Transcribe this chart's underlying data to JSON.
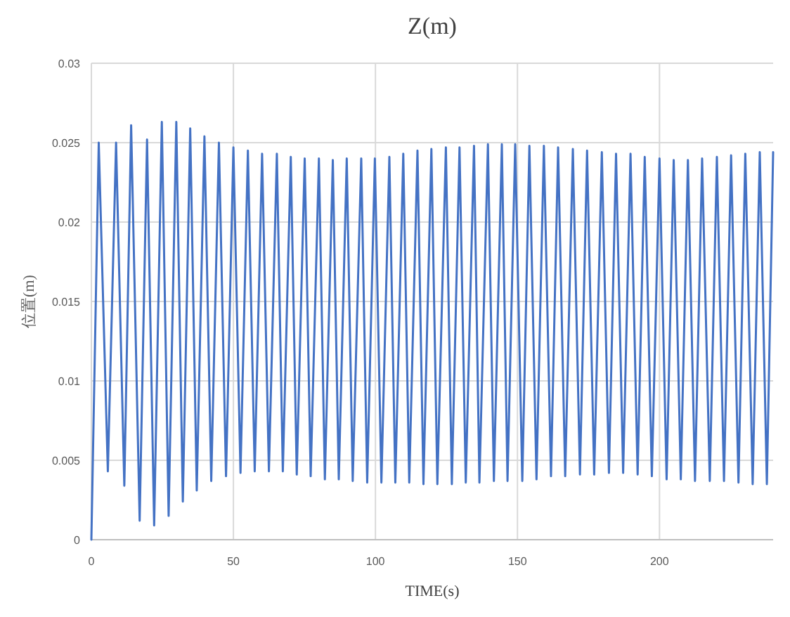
{
  "chart_data": {
    "type": "line",
    "title": "Z(m)",
    "xlabel": "TIME(s)",
    "ylabel": "位置(m)",
    "xlim": [
      0,
      240
    ],
    "ylim": [
      0,
      0.03
    ],
    "xticks": [
      0,
      50,
      100,
      150,
      200
    ],
    "yticks": [
      0,
      0.005,
      0.01,
      0.015,
      0.02,
      0.025,
      0.03
    ],
    "grid": true,
    "x": [
      0,
      2.6,
      5.8,
      8.7,
      11.6,
      14.0,
      17.0,
      19.6,
      22.1,
      24.8,
      27.2,
      29.9,
      32.2,
      34.8,
      37.1,
      39.8,
      42.2,
      44.9,
      47.4,
      50.0,
      52.5,
      55.1,
      57.5,
      60.1,
      62.5,
      65.3,
      67.4,
      70.2,
      72.3,
      75.1,
      77.2,
      80.1,
      82.2,
      85.0,
      87.1,
      89.9,
      92.0,
      95.0,
      97.1,
      99.8,
      102.1,
      104.9,
      107.0,
      109.8,
      111.9,
      114.8,
      116.9,
      119.7,
      121.8,
      124.8,
      126.9,
      129.6,
      131.8,
      134.7,
      136.6,
      139.6,
      141.7,
      144.5,
      146.5,
      149.2,
      151.7,
      154.2,
      156.7,
      159.3,
      161.8,
      164.3,
      166.8,
      169.5,
      172.0,
      174.5,
      177.0,
      179.7,
      182.2,
      184.7,
      187.2,
      189.8,
      192.3,
      194.8,
      197.3,
      200.0,
      202.5,
      205.0,
      207.5,
      210.0,
      212.5,
      215.0,
      217.7,
      220.2,
      222.7,
      225.2,
      227.8,
      230.2,
      232.8,
      235.3,
      237.8,
      240
    ],
    "series": [
      {
        "color": "#4472c4",
        "values": [
          0,
          0.025,
          0.0043,
          0.025,
          0.0034,
          0.0261,
          0.0012,
          0.0252,
          0.0009,
          0.0263,
          0.0015,
          0.0263,
          0.0024,
          0.0259,
          0.0031,
          0.0254,
          0.0037,
          0.025,
          0.004,
          0.0247,
          0.0042,
          0.0245,
          0.0043,
          0.0243,
          0.0043,
          0.0243,
          0.0043,
          0.0241,
          0.0041,
          0.024,
          0.004,
          0.024,
          0.0038,
          0.0239,
          0.0038,
          0.024,
          0.0037,
          0.024,
          0.0036,
          0.024,
          0.0036,
          0.0241,
          0.0036,
          0.0243,
          0.0036,
          0.0245,
          0.0035,
          0.0246,
          0.0035,
          0.0247,
          0.0035,
          0.0247,
          0.0036,
          0.0248,
          0.0036,
          0.0249,
          0.0037,
          0.0249,
          0.0037,
          0.0249,
          0.0037,
          0.0248,
          0.0038,
          0.0248,
          0.004,
          0.0247,
          0.004,
          0.0246,
          0.0041,
          0.0245,
          0.0041,
          0.0244,
          0.0042,
          0.0243,
          0.0042,
          0.0243,
          0.0041,
          0.0241,
          0.004,
          0.024,
          0.0038,
          0.0239,
          0.0038,
          0.0239,
          0.0037,
          0.024,
          0.0037,
          0.0241,
          0.0037,
          0.0242,
          0.0036,
          0.0243,
          0.0035,
          0.0244,
          0.0035,
          0.0244
        ]
      }
    ]
  }
}
